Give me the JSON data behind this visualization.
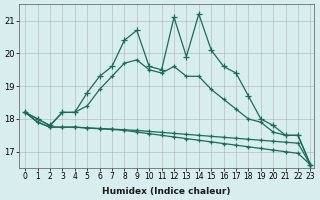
{
  "xlabel": "Humidex (Indice chaleur)",
  "ylabel": "",
  "background_color": "#d8eeee",
  "grid_color": "#aaaaaa",
  "line_color": "#1a6b5a",
  "xlim": [
    0,
    23
  ],
  "ylim": [
    16.5,
    21.5
  ],
  "yticks": [
    17,
    18,
    19,
    20,
    21
  ],
  "xticks": [
    0,
    1,
    2,
    3,
    4,
    5,
    6,
    7,
    8,
    9,
    10,
    11,
    12,
    13,
    14,
    15,
    16,
    17,
    18,
    19,
    20,
    21,
    22,
    23
  ],
  "series": [
    [
      18.2,
      18.0,
      17.8,
      18.2,
      18.2,
      18.8,
      19.3,
      19.6,
      20.4,
      20.7,
      19.6,
      19.5,
      21.1,
      19.9,
      21.2,
      20.1,
      19.6,
      19.4,
      18.7,
      18.0,
      17.8,
      17.5,
      17.5,
      16.6
    ],
    [
      18.2,
      18.0,
      17.8,
      18.2,
      18.2,
      18.4,
      18.9,
      19.3,
      19.7,
      19.8,
      19.5,
      19.4,
      19.6,
      19.3,
      19.3,
      18.9,
      18.6,
      18.3,
      18.0,
      17.9,
      17.6,
      17.5,
      17.5,
      16.6
    ],
    [
      18.2,
      17.9,
      17.75,
      17.75,
      17.75,
      17.72,
      17.7,
      17.68,
      17.65,
      17.6,
      17.55,
      17.5,
      17.45,
      17.4,
      17.35,
      17.3,
      17.25,
      17.2,
      17.15,
      17.1,
      17.05,
      17.0,
      16.95,
      16.6
    ],
    [
      18.2,
      17.9,
      17.75,
      17.75,
      17.75,
      17.73,
      17.71,
      17.69,
      17.67,
      17.65,
      17.62,
      17.59,
      17.56,
      17.53,
      17.5,
      17.47,
      17.44,
      17.41,
      17.38,
      17.35,
      17.32,
      17.29,
      17.26,
      16.6
    ]
  ]
}
